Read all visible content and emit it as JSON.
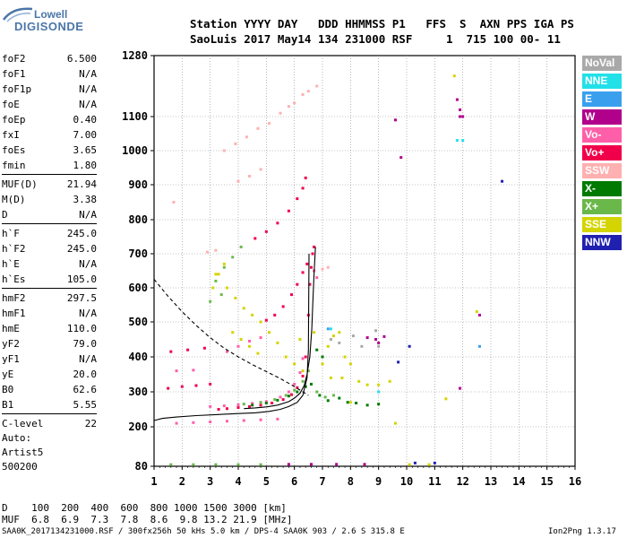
{
  "logo": {
    "line1": "Lowell",
    "line2": "DIGISONDE"
  },
  "header": {
    "line1": "Station YYYY DAY   DDD HHMMSS P1   FFS  S  AXN PPS IGA PS",
    "line2": "SaoLuis 2017 May14 134 231000 RSF     1  715 100 00- 11"
  },
  "params": [
    {
      "name": "foF2",
      "value": "6.500"
    },
    {
      "name": "foF1",
      "value": "N/A"
    },
    {
      "name": "foF1p",
      "value": "N/A"
    },
    {
      "name": "foE",
      "value": "N/A"
    },
    {
      "name": "foEp",
      "value": "0.40"
    },
    {
      "name": "fxI",
      "value": "7.00"
    },
    {
      "name": "foEs",
      "value": "3.65"
    },
    {
      "name": "fmin",
      "value": "1.80"
    },
    {
      "name": "MUF(D)",
      "value": "21.94",
      "divider": true
    },
    {
      "name": "M(D)",
      "value": "3.38"
    },
    {
      "name": "D",
      "value": "N/A"
    },
    {
      "name": "h`F",
      "value": "245.0",
      "divider": true
    },
    {
      "name": "h`F2",
      "value": "245.0"
    },
    {
      "name": "h`E",
      "value": "N/A"
    },
    {
      "name": "h`Es",
      "value": "105.0"
    },
    {
      "name": "hmF2",
      "value": "297.5",
      "divider": true
    },
    {
      "name": "hmF1",
      "value": "N/A"
    },
    {
      "name": "hmE",
      "value": "110.0"
    },
    {
      "name": "yF2",
      "value": "79.0"
    },
    {
      "name": "yF1",
      "value": "N/A"
    },
    {
      "name": "yE",
      "value": "20.0"
    },
    {
      "name": "B0",
      "value": "62.6"
    },
    {
      "name": "B1",
      "value": "5.55"
    },
    {
      "name": "C-level",
      "value": "22",
      "divider": true
    }
  ],
  "auto": {
    "line1": "Auto:",
    "line2": "Artist5",
    "line3": "500200"
  },
  "legend": [
    {
      "label": "NoVal",
      "color": "#a9a9a9"
    },
    {
      "label": "NNE",
      "color": "#22e0e8"
    },
    {
      "label": "E",
      "color": "#3aa0ee"
    },
    {
      "label": "W",
      "color": "#b0008c"
    },
    {
      "label": "Vo-",
      "color": "#ff5fa8"
    },
    {
      "label": "Vo+",
      "color": "#f0004a"
    },
    {
      "label": "SSW",
      "color": "#ffb0b0"
    },
    {
      "label": "X-",
      "color": "#007a00"
    },
    {
      "label": "X+",
      "color": "#6ab84a"
    },
    {
      "label": "SSE",
      "color": "#d4d400"
    },
    {
      "label": "NNW",
      "color": "#2020b0"
    }
  ],
  "muf_table": {
    "d_line": "D    100  200  400  600  800 1000 1500 3000 [km]",
    "muf_line": "MUF  6.8  6.9  7.3  7.8  8.6  9.8 13.2 21.9 [MHz]"
  },
  "footer": {
    "left": "SAA0K_2017134231000.RSF / 300fx256h 50 kHs 5.0 km / DPS-4 SAA0K 903 / 2.6 S 315.8 E",
    "right": "Ion2Png 1.3.17"
  },
  "chart_data": {
    "type": "scatter",
    "title": "",
    "xlabel": "",
    "ylabel": "",
    "xlim": [
      1,
      16
    ],
    "ylim": [
      80,
      1280
    ],
    "x_ticks": [
      1,
      2,
      3,
      4,
      5,
      6,
      7,
      8,
      9,
      10,
      11,
      12,
      13,
      14,
      15,
      16
    ],
    "y_ticks": [
      80,
      200,
      300,
      400,
      500,
      600,
      700,
      800,
      900,
      1000,
      1100,
      1280
    ],
    "grid": true,
    "legend_position": "right",
    "series": [
      {
        "name": "Vo+",
        "color": "#f0004a",
        "points": [
          [
            3.3,
            250
          ],
          [
            3.6,
            252
          ],
          [
            4.0,
            255
          ],
          [
            4.4,
            258
          ],
          [
            4.8,
            262
          ],
          [
            5.2,
            268
          ],
          [
            5.6,
            278
          ],
          [
            5.9,
            292
          ],
          [
            6.1,
            312
          ],
          [
            6.3,
            345
          ],
          [
            6.4,
            400
          ],
          [
            6.5,
            520
          ],
          [
            6.55,
            610
          ],
          [
            6.6,
            660
          ],
          [
            6.65,
            700
          ],
          [
            6.7,
            720
          ],
          [
            5.0,
            505
          ],
          [
            5.3,
            520
          ],
          [
            5.6,
            545
          ],
          [
            5.9,
            580
          ],
          [
            6.1,
            610
          ],
          [
            6.3,
            645
          ],
          [
            6.45,
            670
          ],
          [
            4.6,
            745
          ],
          [
            5.0,
            765
          ],
          [
            5.4,
            790
          ],
          [
            5.8,
            825
          ],
          [
            6.1,
            860
          ],
          [
            6.3,
            890
          ],
          [
            6.4,
            920
          ],
          [
            1.5,
            310
          ],
          [
            2.0,
            315
          ],
          [
            2.5,
            318
          ],
          [
            3.0,
            322
          ],
          [
            1.6,
            415
          ],
          [
            2.2,
            420
          ],
          [
            2.8,
            425
          ]
        ]
      },
      {
        "name": "Vo-",
        "color": "#ff5fa8",
        "points": [
          [
            3.0,
            258
          ],
          [
            3.5,
            260
          ],
          [
            4.0,
            263
          ],
          [
            4.5,
            267
          ],
          [
            5.0,
            272
          ],
          [
            5.5,
            285
          ],
          [
            5.8,
            300
          ],
          [
            6.0,
            322
          ],
          [
            6.2,
            355
          ],
          [
            6.3,
            395
          ],
          [
            1.8,
            210
          ],
          [
            2.4,
            212
          ],
          [
            3.0,
            214
          ],
          [
            3.6,
            216
          ],
          [
            4.2,
            218
          ],
          [
            4.8,
            220
          ],
          [
            5.4,
            222
          ],
          [
            3.6,
            415
          ],
          [
            4.0,
            430
          ],
          [
            4.4,
            445
          ],
          [
            4.8,
            455
          ],
          [
            1.8,
            360
          ],
          [
            2.4,
            362
          ],
          [
            6.7,
            650
          ],
          [
            6.8,
            630
          ]
        ]
      },
      {
        "name": "X+",
        "color": "#6ab84a",
        "points": [
          [
            4.2,
            265
          ],
          [
            4.8,
            270
          ],
          [
            5.3,
            278
          ],
          [
            5.7,
            290
          ],
          [
            6.0,
            305
          ],
          [
            6.3,
            330
          ],
          [
            6.5,
            360
          ],
          [
            6.8,
            300
          ],
          [
            7.1,
            285
          ],
          [
            7.4,
            290
          ],
          [
            3.2,
            620
          ],
          [
            3.5,
            660
          ],
          [
            3.8,
            690
          ],
          [
            4.1,
            720
          ],
          [
            3.0,
            560
          ],
          [
            3.4,
            580
          ],
          [
            1.6,
            85
          ],
          [
            2.4,
            85
          ],
          [
            3.2,
            85
          ],
          [
            4.0,
            85
          ],
          [
            4.8,
            85
          ]
        ]
      },
      {
        "name": "X-",
        "color": "#007a00",
        "points": [
          [
            4.5,
            262
          ],
          [
            5.0,
            268
          ],
          [
            5.4,
            276
          ],
          [
            5.8,
            288
          ],
          [
            6.1,
            300
          ],
          [
            6.4,
            315
          ],
          [
            6.6,
            322
          ],
          [
            6.9,
            290
          ],
          [
            7.2,
            275
          ],
          [
            7.6,
            282
          ],
          [
            7.9,
            270
          ],
          [
            8.2,
            268
          ],
          [
            8.6,
            262
          ],
          [
            9.0,
            265
          ],
          [
            6.8,
            420
          ],
          [
            7.0,
            400
          ]
        ]
      },
      {
        "name": "SSE",
        "color": "#d4d400",
        "points": [
          [
            3.1,
            600
          ],
          [
            3.3,
            640
          ],
          [
            3.6,
            600
          ],
          [
            3.9,
            570
          ],
          [
            4.2,
            540
          ],
          [
            4.5,
            520
          ],
          [
            4.8,
            500
          ],
          [
            5.1,
            470
          ],
          [
            5.4,
            440
          ],
          [
            5.7,
            400
          ],
          [
            6.0,
            380
          ],
          [
            6.3,
            360
          ],
          [
            3.8,
            470
          ],
          [
            4.1,
            450
          ],
          [
            4.4,
            430
          ],
          [
            4.7,
            410
          ],
          [
            7.0,
            380
          ],
          [
            7.2,
            430
          ],
          [
            7.4,
            460
          ],
          [
            7.6,
            470
          ],
          [
            7.8,
            400
          ],
          [
            8.0,
            380
          ],
          [
            8.3,
            330
          ],
          [
            8.6,
            320
          ],
          [
            9.0,
            320
          ],
          [
            7.3,
            340
          ],
          [
            7.7,
            340
          ],
          [
            8.0,
            270
          ],
          [
            9.4,
            330
          ],
          [
            3.2,
            640
          ],
          [
            3.5,
            670
          ],
          [
            6.2,
            450
          ],
          [
            6.7,
            470
          ],
          [
            9.6,
            210
          ],
          [
            10.1,
            85
          ],
          [
            10.8,
            85
          ],
          [
            11.7,
            1220
          ],
          [
            12.5,
            530
          ],
          [
            11.4,
            280
          ]
        ]
      },
      {
        "name": "SSW",
        "color": "#ffb0b0",
        "points": [
          [
            3.5,
            1000
          ],
          [
            3.9,
            1020
          ],
          [
            4.3,
            1040
          ],
          [
            4.7,
            1065
          ],
          [
            5.1,
            1080
          ],
          [
            5.5,
            1110
          ],
          [
            5.8,
            1130
          ],
          [
            6.0,
            1140
          ],
          [
            6.3,
            1165
          ],
          [
            6.5,
            1175
          ],
          [
            6.8,
            1190
          ],
          [
            4.0,
            910
          ],
          [
            4.4,
            925
          ],
          [
            4.8,
            945
          ],
          [
            2.9,
            705
          ],
          [
            3.2,
            710
          ],
          [
            1.7,
            850
          ],
          [
            7.0,
            655
          ],
          [
            7.2,
            660
          ]
        ]
      },
      {
        "name": "W",
        "color": "#b0008c",
        "points": [
          [
            8.6,
            455
          ],
          [
            8.9,
            450
          ],
          [
            9.2,
            458
          ],
          [
            9.0,
            440
          ],
          [
            9.6,
            1090
          ],
          [
            9.8,
            980
          ],
          [
            11.9,
            1120
          ],
          [
            11.9,
            1100
          ],
          [
            12.0,
            1100
          ],
          [
            11.9,
            310
          ],
          [
            12.6,
            520
          ],
          [
            5.8,
            86
          ],
          [
            6.6,
            86
          ],
          [
            7.5,
            86
          ],
          [
            8.5,
            86
          ],
          [
            11.8,
            1150
          ]
        ]
      },
      {
        "name": "NNW",
        "color": "#2020b0",
        "points": [
          [
            13.4,
            910
          ],
          [
            9.7,
            385
          ],
          [
            10.1,
            430
          ],
          [
            10.3,
            90
          ],
          [
            11.0,
            90
          ]
        ]
      },
      {
        "name": "NNE",
        "color": "#22e0e8",
        "points": [
          [
            7.3,
            480
          ],
          [
            11.8,
            1030
          ],
          [
            12.0,
            1030
          ],
          [
            9.0,
            300
          ]
        ]
      },
      {
        "name": "E",
        "color": "#3aa0ee",
        "points": [
          [
            7.2,
            480
          ],
          [
            12.6,
            430
          ]
        ]
      },
      {
        "name": "NoVal",
        "color": "#a9a9a9",
        "points": [
          [
            7.3,
            450
          ],
          [
            7.6,
            440
          ],
          [
            8.1,
            460
          ],
          [
            8.4,
            430
          ],
          [
            8.9,
            475
          ],
          [
            9.0,
            430
          ]
        ]
      }
    ],
    "lines": [
      {
        "name": "profile",
        "style": "solid",
        "points": [
          [
            1,
            218
          ],
          [
            1.3,
            224
          ],
          [
            1.8,
            228
          ],
          [
            2.5,
            232
          ],
          [
            3.2,
            235
          ],
          [
            4.0,
            238
          ],
          [
            4.6,
            240
          ],
          [
            5.1,
            244
          ],
          [
            5.5,
            250
          ],
          [
            5.8,
            258
          ],
          [
            6.1,
            270
          ],
          [
            6.3,
            290
          ],
          [
            6.45,
            340
          ],
          [
            6.5,
            420
          ],
          [
            6.52,
            700
          ]
        ]
      },
      {
        "name": "trace",
        "style": "solid",
        "points": [
          [
            4.2,
            252
          ],
          [
            4.6,
            254
          ],
          [
            5.0,
            257
          ],
          [
            5.4,
            262
          ],
          [
            5.8,
            272
          ],
          [
            6.0,
            282
          ],
          [
            6.2,
            296
          ],
          [
            6.35,
            318
          ],
          [
            6.45,
            350
          ],
          [
            6.55,
            400
          ],
          [
            6.62,
            480
          ],
          [
            6.66,
            560
          ],
          [
            6.7,
            640
          ],
          [
            6.75,
            720
          ]
        ]
      },
      {
        "name": "muf_curve",
        "style": "dashed",
        "points": [
          [
            1,
            625
          ],
          [
            1.5,
            575
          ],
          [
            2.0,
            530
          ],
          [
            2.5,
            490
          ],
          [
            3.0,
            455
          ],
          [
            3.5,
            425
          ],
          [
            4.0,
            400
          ],
          [
            4.5,
            378
          ],
          [
            5.0,
            358
          ],
          [
            5.5,
            338
          ],
          [
            6.0,
            315
          ],
          [
            6.3,
            300
          ],
          [
            6.5,
            290
          ]
        ]
      }
    ]
  }
}
